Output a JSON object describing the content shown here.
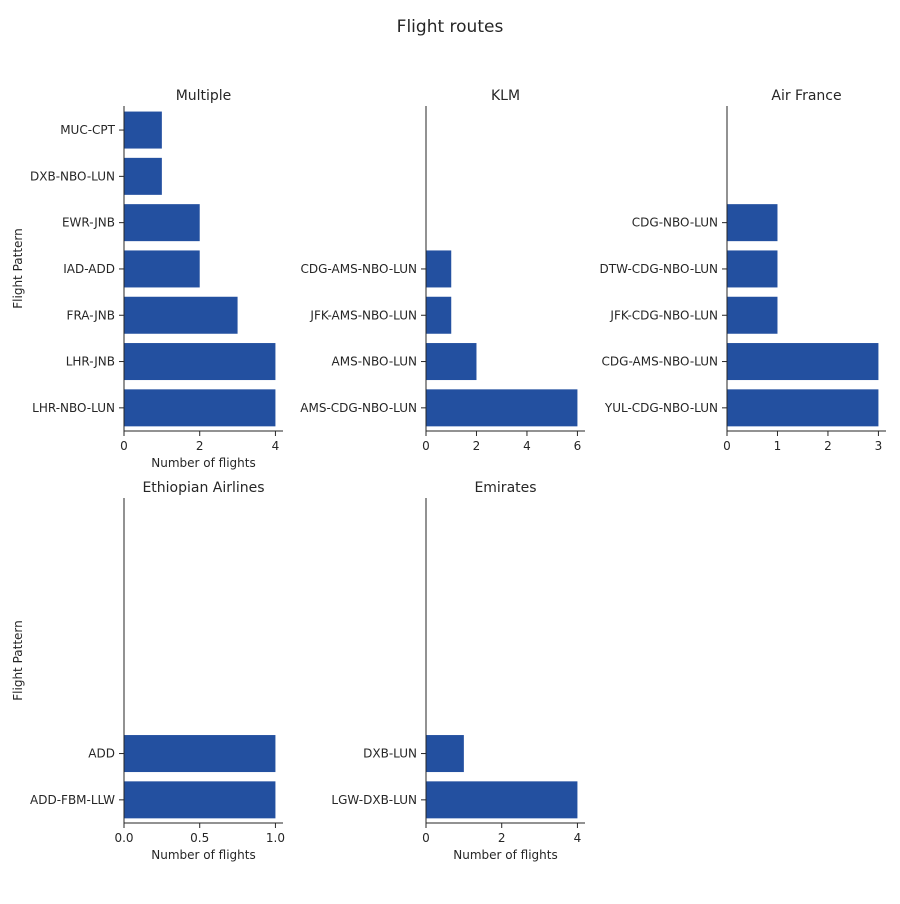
{
  "title": "Flight routes",
  "colors": {
    "bar": "#2350A0",
    "axis": "#262626",
    "text": "#262626"
  },
  "chart_data": [
    {
      "type": "bar",
      "orientation": "horizontal",
      "title": "Multiple",
      "ylabel": "Flight Pattern",
      "xlabel": "Number of flights",
      "categories": [
        "MUC-CPT",
        "DXB-NBO-LUN",
        "EWR-JNB",
        "IAD-ADD",
        "FRA-JNB",
        "LHR-JNB",
        "LHR-NBO-LUN"
      ],
      "values": [
        1,
        1,
        2,
        2,
        3,
        4,
        4
      ],
      "xlim": [
        0,
        4.2
      ],
      "xticks": [
        0,
        2,
        4
      ],
      "xtick_labels": [
        "0",
        "2",
        "4"
      ]
    },
    {
      "type": "bar",
      "orientation": "horizontal",
      "title": "KLM",
      "ylabel": "",
      "xlabel": "",
      "categories": [
        "CDG-AMS-NBO-LUN",
        "JFK-AMS-NBO-LUN",
        "AMS-NBO-LUN",
        "AMS-CDG-NBO-LUN"
      ],
      "values": [
        1,
        1,
        2,
        6
      ],
      "xlim": [
        0,
        6.3
      ],
      "xticks": [
        0,
        2,
        4,
        6
      ],
      "xtick_labels": [
        "0",
        "2",
        "4",
        "6"
      ]
    },
    {
      "type": "bar",
      "orientation": "horizontal",
      "title": "Air France",
      "ylabel": "",
      "xlabel": "",
      "categories": [
        "CDG-NBO-LUN",
        "DTW-CDG-NBO-LUN",
        "JFK-CDG-NBO-LUN",
        "CDG-AMS-NBO-LUN",
        "YUL-CDG-NBO-LUN"
      ],
      "values": [
        1,
        1,
        1,
        3,
        3
      ],
      "xlim": [
        0,
        3.15
      ],
      "xticks": [
        0,
        1,
        2,
        3
      ],
      "xtick_labels": [
        "0",
        "1",
        "2",
        "3"
      ]
    },
    {
      "type": "bar",
      "orientation": "horizontal",
      "title": "Ethiopian Airlines",
      "ylabel": "Flight Pattern",
      "xlabel": "Number of flights",
      "categories": [
        "ADD",
        "ADD-FBM-LLW"
      ],
      "values": [
        1,
        1
      ],
      "xlim": [
        0,
        1.05
      ],
      "xticks": [
        0,
        0.5,
        1.0
      ],
      "xtick_labels": [
        "0.0",
        "0.5",
        "1.0"
      ]
    },
    {
      "type": "bar",
      "orientation": "horizontal",
      "title": "Emirates",
      "ylabel": "",
      "xlabel": "Number of flights",
      "categories": [
        "DXB-LUN",
        "LGW-DXB-LUN"
      ],
      "values": [
        1,
        4
      ],
      "xlim": [
        0,
        4.2
      ],
      "xticks": [
        0,
        2,
        4
      ],
      "xtick_labels": [
        "0",
        "2",
        "4"
      ]
    }
  ]
}
